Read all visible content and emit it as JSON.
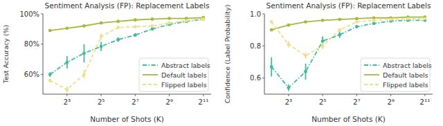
{
  "chart_data": [
    {
      "type": "line",
      "title": "Sentiment Analysis (FP): Replacement Labels",
      "x_label": "Number of Shots (K)",
      "y_label": "Test Accuracy (%)",
      "log": "x",
      "legend": "lower right",
      "grid": false,
      "x": [
        4,
        8,
        16,
        32,
        64,
        128,
        256,
        512,
        1024,
        2048
      ],
      "xlim": [
        3,
        2800
      ],
      "xticks": [
        {
          "value": 8,
          "label": "2³"
        },
        {
          "value": 32,
          "label": "2⁵"
        },
        {
          "value": 128,
          "label": "2⁷"
        },
        {
          "value": 512,
          "label": "2⁹"
        },
        {
          "value": 2048,
          "label": "2¹¹"
        }
      ],
      "ylim": [
        47,
        100
      ],
      "yticks": [
        {
          "value": 60,
          "label": "60%"
        },
        {
          "value": 80,
          "label": "80%"
        },
        {
          "value": 100,
          "label": "100%"
        }
      ],
      "series": [
        {
          "name": "Abstract labels",
          "color": "#3dbb9b",
          "line_style": "dashdot",
          "marker": "circle",
          "values": [
            60,
            68,
            74,
            78.5,
            83,
            86,
            90,
            93,
            95,
            96.5
          ],
          "errors": [
            1.5,
            4,
            6,
            3,
            1.5,
            1,
            0.5,
            0.5,
            0.5,
            0.5
          ]
        },
        {
          "name": "Default labels",
          "color": "#a7b83c",
          "line_style": "solid",
          "marker": "circle",
          "values": [
            89,
            90.5,
            92,
            94,
            95,
            96,
            96.5,
            97,
            97,
            97.5
          ],
          "errors": [
            0.5,
            0.5,
            0.5,
            0.5,
            0.3,
            0.3,
            0.3,
            0.3,
            0.3,
            0.3
          ]
        },
        {
          "name": "Flipped labels",
          "color": "#ede08c",
          "line_style": "dashed",
          "marker": "circle",
          "values": [
            56,
            50,
            60,
            85,
            91,
            91.5,
            92,
            94,
            95.5,
            96.5
          ],
          "errors": [
            1.5,
            2,
            3,
            2,
            1,
            0.5,
            0.5,
            0.5,
            0.5,
            0.5
          ]
        }
      ]
    },
    {
      "type": "line",
      "title": "Sentiment Analysis (FP): Replacement Labels",
      "x_label": "Number of Shots (K)",
      "y_label": "Confidence (Label Probability)",
      "log": "x",
      "legend": "lower right",
      "grid": false,
      "x": [
        4,
        8,
        16,
        32,
        64,
        128,
        256,
        512,
        1024,
        2048
      ],
      "xlim": [
        3,
        2800
      ],
      "xticks": [
        {
          "value": 8,
          "label": "2³"
        },
        {
          "value": 32,
          "label": "2⁵"
        },
        {
          "value": 128,
          "label": "2⁷"
        },
        {
          "value": 512,
          "label": "2⁹"
        },
        {
          "value": 2048,
          "label": "2¹¹"
        }
      ],
      "ylim": [
        0.5,
        1.0
      ],
      "yticks": [
        0.6,
        0.8,
        {
          "value": 1.0,
          "label": "1.0"
        }
      ],
      "series": [
        {
          "name": "Abstract labels",
          "color": "#3dbb9b",
          "line_style": "dashdot",
          "marker": "circle",
          "values": [
            0.67,
            0.54,
            0.64,
            0.83,
            0.87,
            0.92,
            0.94,
            0.955,
            0.96,
            0.96
          ],
          "errors": [
            0.06,
            0.02,
            0.05,
            0.03,
            0.02,
            0.01,
            0.005,
            0.005,
            0.005,
            0.005
          ]
        },
        {
          "name": "Default labels",
          "color": "#a7b83c",
          "line_style": "solid",
          "marker": "circle",
          "values": [
            0.9,
            0.93,
            0.95,
            0.96,
            0.965,
            0.97,
            0.975,
            0.975,
            0.98,
            0.98
          ],
          "errors": [
            0.005,
            0.005,
            0.005,
            0.003,
            0.003,
            0.003,
            0.003,
            0.003,
            0.003,
            0.003
          ]
        },
        {
          "name": "Flipped labels",
          "color": "#ede08c",
          "line_style": "dashed",
          "marker": "circle",
          "values": [
            0.95,
            0.81,
            0.74,
            0.8,
            0.9,
            0.95,
            0.96,
            0.965,
            0.97,
            0.97
          ],
          "errors": [
            0.01,
            0.02,
            0.02,
            0.02,
            0.01,
            0.005,
            0.005,
            0.005,
            0.005,
            0.005
          ]
        }
      ]
    }
  ]
}
